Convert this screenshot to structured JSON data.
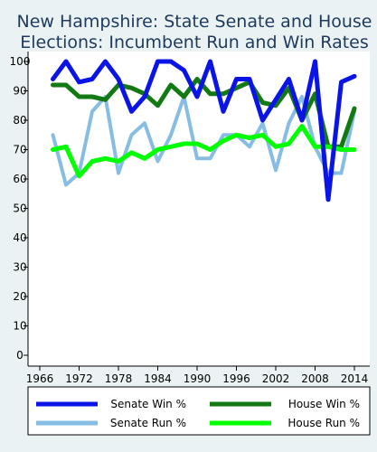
{
  "chart_data": {
    "type": "line",
    "title": [
      "New Hampshire: State Senate and House",
      "Elections: Incumbent Run and Win Rates"
    ],
    "xlabel": "",
    "ylabel": "",
    "xlim": [
      1965,
      2015
    ],
    "ylim": [
      0,
      100
    ],
    "x_ticks": [
      "1966",
      "1972",
      "1978",
      "1984",
      "1990",
      "1996",
      "2002",
      "2008",
      "2014"
    ],
    "y_ticks": [
      "0",
      "10",
      "20",
      "30",
      "40",
      "50",
      "60",
      "70",
      "80",
      "90",
      "100"
    ],
    "grid": "off",
    "legend_position": "bottom",
    "x": [
      1968,
      1970,
      1972,
      1974,
      1976,
      1978,
      1980,
      1982,
      1984,
      1986,
      1988,
      1990,
      1992,
      1994,
      1996,
      1998,
      2000,
      2002,
      2004,
      2006,
      2008,
      2010,
      2012,
      2014
    ],
    "series": [
      {
        "name": "Senate Win %",
        "color": "#0a14e6",
        "width": 5,
        "values": [
          94,
          100,
          93,
          94,
          100,
          94,
          83,
          88,
          100,
          100,
          97,
          88,
          100,
          83,
          94,
          94,
          80,
          87,
          94,
          80,
          100,
          53,
          93,
          95
        ]
      },
      {
        "name": "House Win %",
        "color": "#137a13",
        "width": 5,
        "values": [
          92,
          92,
          88,
          88,
          87,
          92,
          91,
          89,
          85,
          92,
          88,
          94,
          89,
          89,
          91,
          93,
          86,
          85,
          91,
          80,
          89,
          71,
          71,
          84
        ]
      },
      {
        "name": "Senate Run %",
        "color": "#87bde3",
        "width": 4,
        "values": [
          75,
          58,
          62,
          83,
          88,
          62,
          75,
          79,
          66,
          75,
          88,
          67,
          67,
          75,
          75,
          71,
          79,
          63,
          79,
          88,
          71,
          62,
          62,
          83
        ]
      },
      {
        "name": "House Run %",
        "color": "#00ff00",
        "width": 5,
        "values": [
          70,
          71,
          61,
          66,
          67,
          66,
          69,
          67,
          70,
          71,
          72,
          72,
          70,
          73,
          75,
          74,
          75,
          71,
          72,
          78,
          71,
          71,
          70,
          70
        ]
      }
    ],
    "legend_order": [
      0,
      1,
      2,
      3
    ]
  }
}
